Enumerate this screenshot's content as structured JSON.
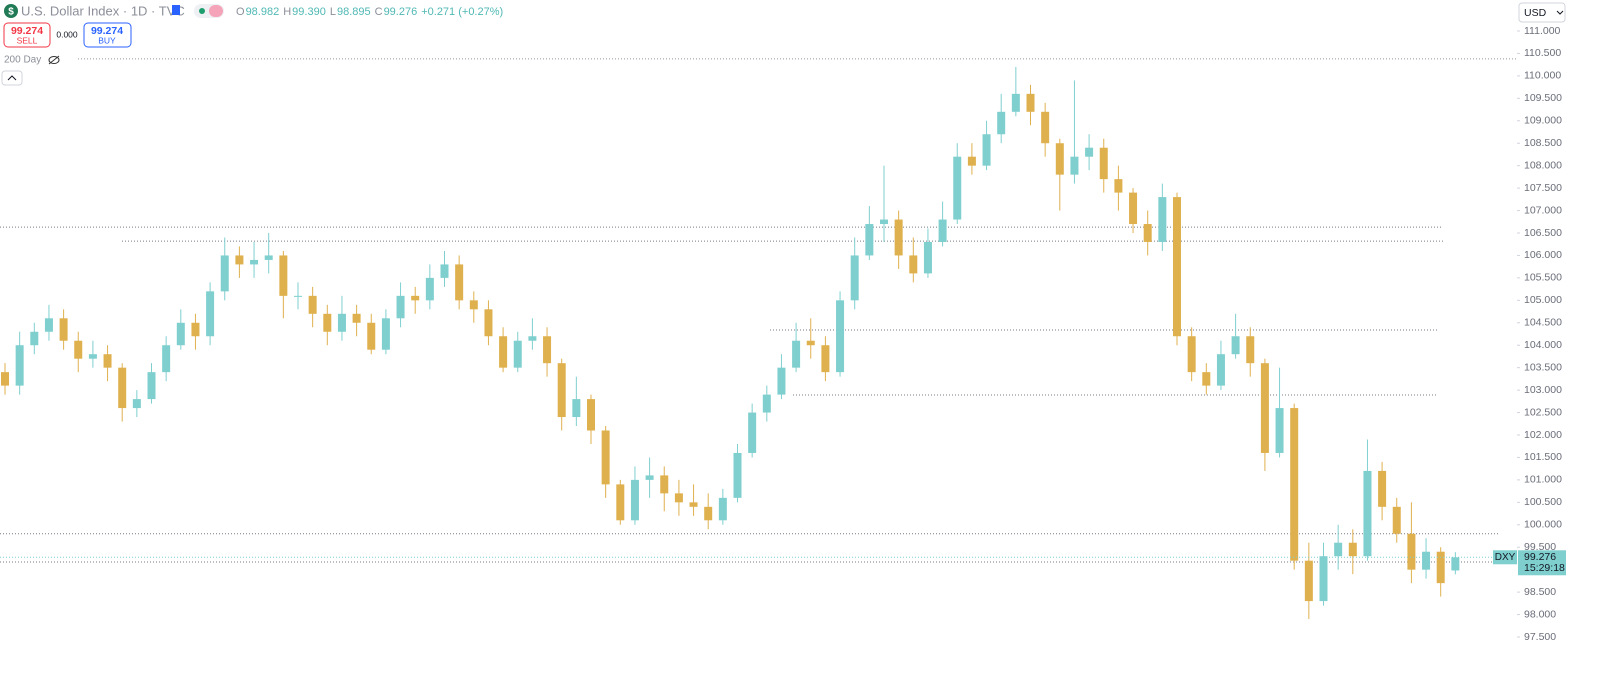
{
  "header": {
    "symbol_icon": "$",
    "title": "U.S. Dollar Index · 1D · TVC",
    "ohlc": [
      {
        "label": "O",
        "value": "98.982"
      },
      {
        "label": "H",
        "value": "99.390"
      },
      {
        "label": "L",
        "value": "98.895"
      },
      {
        "label": "C",
        "value": "99.276"
      }
    ],
    "change": "+0.271 (+0.27%)",
    "sell_price": "99.274",
    "sell_label": "SELL",
    "spread": "0.000",
    "buy_price": "99.274",
    "buy_label": "BUY",
    "indicator": "200 Day",
    "currency": "USD"
  },
  "chart_data": {
    "type": "candlestick",
    "up_color": "#7fcfcf",
    "down_color": "#dfb04e",
    "open": [
      103.4,
      103.1,
      104.0,
      104.3,
      104.6,
      104.1,
      103.7,
      103.8,
      103.5,
      102.6,
      102.8,
      103.4,
      104.0,
      104.5,
      104.2,
      105.2,
      106.0,
      105.8,
      105.9,
      106.0,
      105.1,
      105.1,
      104.7,
      104.3,
      104.7,
      104.5,
      103.9,
      104.6,
      105.1,
      105.0,
      105.5,
      105.8,
      105.0,
      104.8,
      104.2,
      103.5,
      104.1,
      104.2,
      103.6,
      102.4,
      102.8,
      102.1,
      100.9,
      100.1,
      101.0,
      101.1,
      100.7,
      100.5,
      100.4,
      100.1,
      100.6,
      101.6,
      102.5,
      102.9,
      103.5,
      104.1,
      104.0,
      103.4,
      105.0,
      106.0,
      106.7,
      106.8,
      106.0,
      105.6,
      106.3,
      106.8,
      108.2,
      108.0,
      108.7,
      109.2,
      109.6,
      109.2,
      108.5,
      107.8,
      108.2,
      108.4,
      107.7,
      107.4,
      106.7,
      106.3,
      107.3,
      104.2,
      103.4,
      103.1,
      103.8,
      104.2,
      103.6,
      101.6,
      102.6,
      99.2,
      98.3,
      99.3,
      99.6,
      99.3,
      101.2,
      100.4,
      99.8,
      99.0,
      99.4,
      98.982
    ],
    "high": [
      103.6,
      104.3,
      104.5,
      104.9,
      104.8,
      104.3,
      104.1,
      104.0,
      103.6,
      103.0,
      103.6,
      104.2,
      104.8,
      104.7,
      105.4,
      106.4,
      106.2,
      106.3,
      106.5,
      106.1,
      105.4,
      105.3,
      104.9,
      105.1,
      104.9,
      104.7,
      104.8,
      105.4,
      105.3,
      105.8,
      106.1,
      106.0,
      105.2,
      105.0,
      104.4,
      104.3,
      104.6,
      104.4,
      103.7,
      103.3,
      102.9,
      102.2,
      101.0,
      101.3,
      101.5,
      101.3,
      101.0,
      100.9,
      100.7,
      100.8,
      101.8,
      102.7,
      103.1,
      103.8,
      104.5,
      104.6,
      104.2,
      105.2,
      106.4,
      107.1,
      108.0,
      107.0,
      106.4,
      106.6,
      107.2,
      108.5,
      108.5,
      109.0,
      109.6,
      110.2,
      109.8,
      109.4,
      108.6,
      109.9,
      108.7,
      108.6,
      108.0,
      107.5,
      107.0,
      107.6,
      107.4,
      104.4,
      103.6,
      104.1,
      104.7,
      104.4,
      103.7,
      103.5,
      102.7,
      99.6,
      99.6,
      100.0,
      99.9,
      101.9,
      101.4,
      100.6,
      100.5,
      99.7,
      99.5,
      99.39
    ],
    "low": [
      102.9,
      102.9,
      103.8,
      104.1,
      103.9,
      103.4,
      103.5,
      103.2,
      102.3,
      102.4,
      102.7,
      103.2,
      103.9,
      103.9,
      104.0,
      105.0,
      105.5,
      105.5,
      105.6,
      104.6,
      104.8,
      104.4,
      104.0,
      104.1,
      104.2,
      103.8,
      103.8,
      104.4,
      104.7,
      104.8,
      105.3,
      104.8,
      104.5,
      104.0,
      103.4,
      103.4,
      103.9,
      103.3,
      102.1,
      102.2,
      101.8,
      100.6,
      100.0,
      100.0,
      100.6,
      100.3,
      100.2,
      100.2,
      99.9,
      100.0,
      100.5,
      101.5,
      102.3,
      102.8,
      103.4,
      103.7,
      103.2,
      103.3,
      104.8,
      105.9,
      106.3,
      105.7,
      105.4,
      105.5,
      106.2,
      106.7,
      107.8,
      107.9,
      108.5,
      109.1,
      108.9,
      108.2,
      107.0,
      107.6,
      107.9,
      107.4,
      107.0,
      106.5,
      106.0,
      106.1,
      104.0,
      103.2,
      102.9,
      103.0,
      103.7,
      103.3,
      101.2,
      101.5,
      99.0,
      97.9,
      98.2,
      99.0,
      98.9,
      99.2,
      100.1,
      99.6,
      98.7,
      98.8,
      98.4,
      98.895
    ],
    "close": [
      103.1,
      104.0,
      104.3,
      104.6,
      104.1,
      103.7,
      103.8,
      103.5,
      102.6,
      102.8,
      103.4,
      104.0,
      104.5,
      104.2,
      105.2,
      106.0,
      105.8,
      105.9,
      106.0,
      105.1,
      105.1,
      104.7,
      104.3,
      104.7,
      104.5,
      103.9,
      104.6,
      105.1,
      105.0,
      105.5,
      105.8,
      105.0,
      104.8,
      104.2,
      103.5,
      104.1,
      104.2,
      103.6,
      102.4,
      102.8,
      102.1,
      100.9,
      100.1,
      101.0,
      101.1,
      100.7,
      100.5,
      100.4,
      100.1,
      100.6,
      101.6,
      102.5,
      102.9,
      103.5,
      104.1,
      104.0,
      103.4,
      105.0,
      106.0,
      106.7,
      106.8,
      106.0,
      105.6,
      106.3,
      106.8,
      108.2,
      108.0,
      108.7,
      109.2,
      109.6,
      109.2,
      108.5,
      107.8,
      108.2,
      108.4,
      107.7,
      107.4,
      106.7,
      106.3,
      107.3,
      104.2,
      103.4,
      103.1,
      103.8,
      104.2,
      103.6,
      101.6,
      102.6,
      99.2,
      98.3,
      99.3,
      99.6,
      99.3,
      101.2,
      100.4,
      99.8,
      99.0,
      99.4,
      98.7,
      99.276
    ],
    "ylim": [
      97.3,
      111.2
    ],
    "yticks": [
      {
        "value": 111,
        "label": "111.000"
      },
      {
        "value": 110.5,
        "label": "110.500"
      },
      {
        "value": 110,
        "label": "110.000"
      },
      {
        "value": 109.5,
        "label": "109.500"
      },
      {
        "value": 109,
        "label": "109.000"
      },
      {
        "value": 108.5,
        "label": "108.500"
      },
      {
        "value": 108,
        "label": "108.000"
      },
      {
        "value": 107.5,
        "label": "107.500"
      },
      {
        "value": 107,
        "label": "107.000"
      },
      {
        "value": 106.5,
        "label": "106.500"
      },
      {
        "value": 106,
        "label": "106.000"
      },
      {
        "value": 105.5,
        "label": "105.500"
      },
      {
        "value": 105,
        "label": "105.000"
      },
      {
        "value": 104.5,
        "label": "104.500"
      },
      {
        "value": 104,
        "label": "104.000"
      },
      {
        "value": 103.5,
        "label": "103.500"
      },
      {
        "value": 103,
        "label": "103.000"
      },
      {
        "value": 102.5,
        "label": "102.500"
      },
      {
        "value": 102,
        "label": "102.000"
      },
      {
        "value": 101.5,
        "label": "101.500"
      },
      {
        "value": 101,
        "label": "101.000"
      },
      {
        "value": 100.5,
        "label": "100.500"
      },
      {
        "value": 100,
        "label": "100.000"
      },
      {
        "value": 99.5,
        "label": "99.500"
      },
      {
        "value": 98.5,
        "label": "98.500"
      },
      {
        "value": 98,
        "label": "98.000"
      },
      {
        "value": 97.5,
        "label": "97.500"
      }
    ],
    "ma200_level": 110.38,
    "level_lines": [
      106.63,
      106.32,
      104.34,
      102.89,
      99.8,
      99.17
    ],
    "last_price": {
      "symbol": "DXY",
      "value": 99.276,
      "label": "99.276",
      "countdown": "15:29:18"
    }
  }
}
